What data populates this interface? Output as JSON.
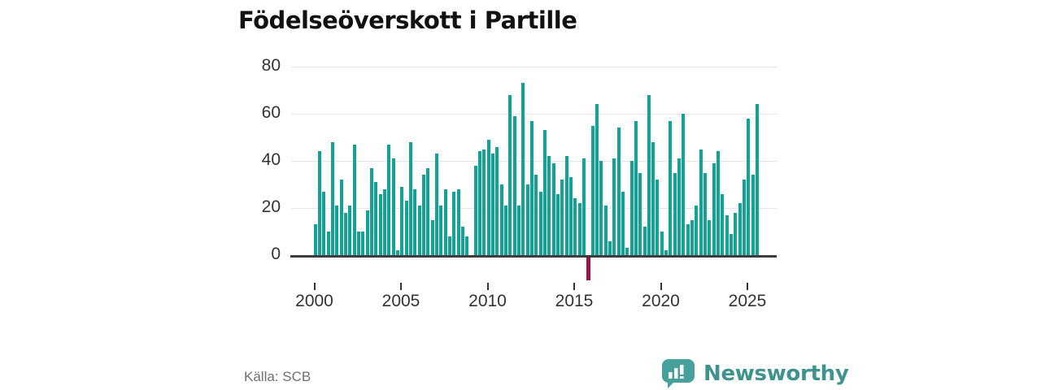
{
  "header": {
    "title": "Födelseöverskott i Partille"
  },
  "footer": {
    "source_label": "Källa: SCB",
    "brand_name": "Newsworthy"
  },
  "colors": {
    "bar_positive": "#12a396",
    "bar_negative": "#a31045",
    "axis_line": "#3d3d3d",
    "gridline": "#e6e6e6",
    "tick_text": "#333333",
    "logo_teal": "#46a09b"
  },
  "chart_data": {
    "type": "bar",
    "title": "Födelseöverskott i Partille",
    "xlabel": "",
    "ylabel": "",
    "x_start": "2000-Q1",
    "x_end": "2025-Q3",
    "frequency": "quarterly",
    "x_tick_labels": [
      "2000",
      "2005",
      "2010",
      "2015",
      "2020",
      "2025"
    ],
    "y_ticks": [
      0,
      20,
      40,
      60,
      80
    ],
    "ylim": [
      -14,
      84
    ],
    "grid": true,
    "legend": "none",
    "negative_highlight_x": "2015-Q4",
    "series": [
      {
        "name": "Födelseöverskott",
        "values": [
          13,
          44,
          27,
          10,
          48,
          21,
          32,
          18,
          21,
          47,
          10,
          10,
          19,
          37,
          31,
          26,
          28,
          47,
          41,
          2,
          29,
          23,
          48,
          28,
          21,
          34,
          37,
          15,
          43,
          21,
          28,
          8,
          27,
          28,
          12,
          8,
          0,
          38,
          44,
          45,
          49,
          43,
          46,
          30,
          21,
          68,
          59,
          21,
          73,
          30,
          57,
          34,
          27,
          53,
          42,
          39,
          26,
          32,
          42,
          33,
          24,
          22,
          41,
          -10,
          55,
          64,
          40,
          21,
          6,
          41,
          54,
          27,
          3,
          40,
          57,
          35,
          12,
          68,
          48,
          32,
          10,
          2,
          57,
          35,
          41,
          60,
          13,
          15,
          21,
          45,
          35,
          15,
          39,
          44,
          26,
          17,
          9,
          18,
          22,
          32,
          58,
          34,
          64
        ]
      }
    ]
  }
}
